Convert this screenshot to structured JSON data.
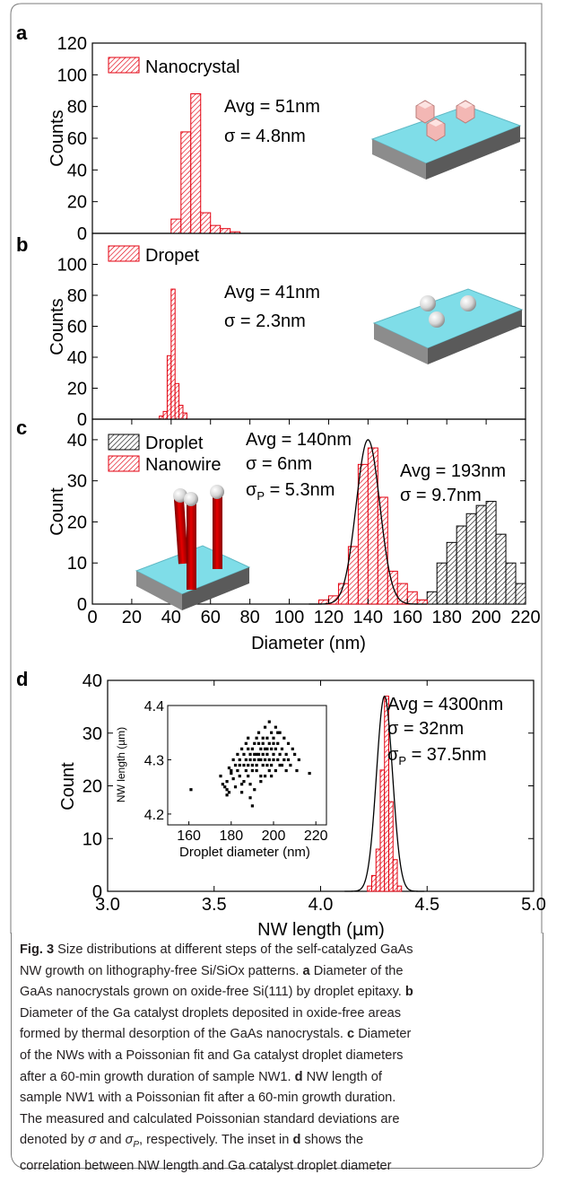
{
  "colors": {
    "red": "#e3000f",
    "black": "#000000",
    "cyan": "#7fdde8",
    "caption_text": "#231f20"
  },
  "chart_data": [
    {
      "panel": "a",
      "type": "bar",
      "ylabel": "Counts",
      "xlim": [
        0,
        220
      ],
      "ylim": [
        0,
        120
      ],
      "yticks": [
        0,
        20,
        40,
        60,
        80,
        100,
        120
      ],
      "bin_width": 5,
      "series": [
        {
          "name": "Nanocrystal",
          "color": "#e3000f",
          "bins": [
            40,
            45,
            50,
            55,
            60,
            65,
            70
          ],
          "values": [
            9,
            64,
            88,
            13,
            5,
            3,
            1
          ]
        }
      ],
      "annotations": [
        "Avg = 51nm",
        "σ = 4.8nm"
      ],
      "inset_icon": "pyramid-crystals-on-substrate-icon"
    },
    {
      "panel": "b",
      "type": "bar",
      "ylabel": "Counts",
      "xlim": [
        0,
        220
      ],
      "ylim": [
        0,
        120
      ],
      "yticks": [
        0,
        20,
        40,
        60,
        80,
        100
      ],
      "bin_width": 2,
      "series": [
        {
          "name": "Dropet",
          "color": "#e3000f",
          "bins": [
            34,
            36,
            38,
            40,
            42,
            44,
            46
          ],
          "values": [
            2,
            5,
            41,
            84,
            23,
            9,
            4
          ]
        }
      ],
      "annotations": [
        "Avg = 41nm",
        "σ = 2.3nm"
      ],
      "inset_icon": "sphere-droplets-on-substrate-icon"
    },
    {
      "panel": "c",
      "type": "bar",
      "ylabel": "Count",
      "xlabel": "Diameter (nm)",
      "xlim": [
        0,
        220
      ],
      "ylim": [
        0,
        45
      ],
      "xticks": [
        0,
        20,
        40,
        60,
        80,
        100,
        120,
        140,
        160,
        180,
        200,
        220
      ],
      "yticks": [
        0,
        10,
        20,
        30,
        40
      ],
      "bin_width": 5,
      "series": [
        {
          "name": "Droplet",
          "color": "#000000",
          "bins": [
            165,
            170,
            175,
            180,
            185,
            190,
            195,
            200,
            205,
            210,
            215
          ],
          "values": [
            1,
            3,
            10,
            15,
            19,
            22,
            24,
            25,
            17,
            10,
            5
          ]
        },
        {
          "name": "Nanowire",
          "color": "#e3000f",
          "bins": [
            115,
            120,
            125,
            130,
            135,
            140,
            145,
            150,
            155,
            160,
            165
          ],
          "values": [
            1,
            2,
            5,
            14,
            34,
            38,
            26,
            8,
            5,
            3,
            1
          ]
        }
      ],
      "fit": {
        "type": "poisson",
        "mean": 140,
        "sigma": 6,
        "peak": 40
      },
      "annotations": [
        "Avg = 140nm",
        "σ = 6nm",
        "σ",
        "P",
        " = 5.3nm",
        "Avg = 193nm",
        "σ = 9.7nm"
      ],
      "inset_icon": "nanowires-on-substrate-icon"
    },
    {
      "panel": "d",
      "type": "bar",
      "ylabel": "Count",
      "xlabel": "NW length (µm)",
      "xlabel_parts": [
        "NW length (",
        "µ",
        "m)"
      ],
      "xlim": [
        3.0,
        5.0
      ],
      "ylim": [
        0,
        40
      ],
      "xticks": [
        3.0,
        3.5,
        4.0,
        4.5,
        5.0
      ],
      "xtick_labels": [
        "3.0",
        "3.5",
        "4.0",
        "4.5",
        "5.0"
      ],
      "yticks": [
        0,
        10,
        20,
        30,
        40
      ],
      "bin_width": 0.02,
      "series": [
        {
          "name": "",
          "color": "#e3000f",
          "bins": [
            4.22,
            4.24,
            4.26,
            4.28,
            4.3,
            4.32,
            4.34,
            4.36
          ],
          "values": [
            1,
            3,
            8,
            23,
            37,
            17,
            6,
            1
          ]
        }
      ],
      "fit": {
        "type": "poisson",
        "mean": 4.3,
        "sigma": 0.0375,
        "peak": 37
      },
      "annotations": [
        "Avg = 4300nm",
        "σ = 32nm",
        "σ",
        "P",
        " = 37.5nm"
      ],
      "inset": {
        "type": "scatter",
        "xlabel": "Droplet diameter (nm)",
        "ylabel": "NW length (µm)",
        "xlim": [
          150,
          225
        ],
        "ylim": [
          4.18,
          4.4
        ],
        "xticks": [
          160,
          180,
          200,
          220
        ],
        "yticks": [
          4.2,
          4.3,
          4.4
        ],
        "ytick_labels": [
          "4.2",
          "4.3",
          "4.4"
        ],
        "points": [
          [
            161,
            4.245
          ],
          [
            175,
            4.27
          ],
          [
            177,
            4.25
          ],
          [
            178,
            4.235
          ],
          [
            178,
            4.26
          ],
          [
            179,
            4.24
          ],
          [
            180,
            4.28
          ],
          [
            181,
            4.3
          ],
          [
            181,
            4.265
          ],
          [
            182,
            4.25
          ],
          [
            182,
            4.29
          ],
          [
            183,
            4.31
          ],
          [
            183,
            4.28
          ],
          [
            184,
            4.27
          ],
          [
            184,
            4.3
          ],
          [
            185,
            4.32
          ],
          [
            185,
            4.255
          ],
          [
            186,
            4.29
          ],
          [
            186,
            4.31
          ],
          [
            187,
            4.33
          ],
          [
            187,
            4.28
          ],
          [
            187,
            4.3
          ],
          [
            188,
            4.27
          ],
          [
            188,
            4.34
          ],
          [
            188,
            4.29
          ],
          [
            189,
            4.31
          ],
          [
            189,
            4.3
          ],
          [
            189,
            4.255
          ],
          [
            190,
            4.32
          ],
          [
            190,
            4.29
          ],
          [
            190,
            4.28
          ],
          [
            190,
            4.215
          ],
          [
            191,
            4.3
          ],
          [
            191,
            4.33
          ],
          [
            191,
            4.31
          ],
          [
            191,
            4.245
          ],
          [
            192,
            4.29
          ],
          [
            192,
            4.34
          ],
          [
            192,
            4.28
          ],
          [
            193,
            4.31
          ],
          [
            193,
            4.35
          ],
          [
            193,
            4.3
          ],
          [
            194,
            4.27
          ],
          [
            194,
            4.32
          ],
          [
            194,
            4.3
          ],
          [
            195,
            4.33
          ],
          [
            195,
            4.31
          ],
          [
            195,
            4.29
          ],
          [
            196,
            4.36
          ],
          [
            196,
            4.3
          ],
          [
            196,
            4.32
          ],
          [
            197,
            4.34
          ],
          [
            197,
            4.29
          ],
          [
            197,
            4.31
          ],
          [
            198,
            4.37
          ],
          [
            198,
            4.33
          ],
          [
            198,
            4.3
          ],
          [
            199,
            4.32
          ],
          [
            199,
            4.35
          ],
          [
            199,
            4.29
          ],
          [
            200,
            4.31
          ],
          [
            200,
            4.34
          ],
          [
            200,
            4.3
          ],
          [
            201,
            4.36
          ],
          [
            201,
            4.32
          ],
          [
            201,
            4.28
          ],
          [
            202,
            4.33
          ],
          [
            202,
            4.3
          ],
          [
            203,
            4.31
          ],
          [
            203,
            4.35
          ],
          [
            204,
            4.32
          ],
          [
            204,
            4.29
          ],
          [
            205,
            4.3
          ],
          [
            205,
            4.34
          ],
          [
            206,
            4.31
          ],
          [
            207,
            4.33
          ],
          [
            207,
            4.3
          ],
          [
            208,
            4.29
          ],
          [
            209,
            4.32
          ],
          [
            210,
            4.31
          ],
          [
            211,
            4.28
          ],
          [
            212,
            4.3
          ],
          [
            217,
            4.275
          ],
          [
            185,
            4.24
          ],
          [
            186,
            4.26
          ],
          [
            189,
            4.23
          ],
          [
            194,
            4.26
          ],
          [
            196,
            4.27
          ],
          [
            198,
            4.28
          ],
          [
            199,
            4.27
          ],
          [
            203,
            4.29
          ],
          [
            206,
            4.28
          ],
          [
            192,
            4.31
          ],
          [
            195,
            4.34
          ],
          [
            188,
            4.32
          ],
          [
            193,
            4.33
          ],
          [
            197,
            4.32
          ],
          [
            200,
            4.33
          ],
          [
            202,
            4.35
          ],
          [
            184,
            4.29
          ],
          [
            180,
            4.275
          ],
          [
            179,
            4.285
          ],
          [
            176,
            4.255
          ],
          [
            178,
            4.245
          ]
        ]
      }
    }
  ],
  "caption": {
    "fig_label": "Fig. 3",
    "lines": [
      [
        {
          "t": "Fig. 3",
          "b": true
        },
        {
          "t": " Size distributions at different steps of the self-catalyzed GaAs"
        }
      ],
      [
        {
          "t": "NW growth on lithography-free Si/SiOx patterns. "
        },
        {
          "t": "a",
          "b": true
        },
        {
          "t": " Diameter of the"
        }
      ],
      [
        {
          "t": "GaAs nanocrystals grown on oxide-free Si(111) by droplet epitaxy. "
        },
        {
          "t": "b",
          "b": true
        }
      ],
      [
        {
          "t": "Diameter of the Ga catalyst droplets deposited in oxide-free areas"
        }
      ],
      [
        {
          "t": "formed by thermal desorption of the GaAs nanocrystals. "
        },
        {
          "t": "c",
          "b": true
        },
        {
          "t": " Diameter"
        }
      ],
      [
        {
          "t": "of the NWs with a Poissonian fit and Ga catalyst droplet diameters"
        }
      ],
      [
        {
          "t": "after a 60-min growth duration of sample NW1. "
        },
        {
          "t": "d",
          "b": true
        },
        {
          "t": " NW length of"
        }
      ],
      [
        {
          "t": "sample NW1 with a Poissonian fit after a 60-min growth duration."
        }
      ],
      [
        {
          "t": "The measured and calculated Poissonian standard deviations are"
        }
      ],
      [
        {
          "t": "denoted by "
        },
        {
          "t": "σ",
          "i": true
        },
        {
          "t": " and "
        },
        {
          "t": "σ",
          "i": true
        },
        {
          "t": "P",
          "sub": true
        },
        {
          "t": ", respectively. The inset in "
        },
        {
          "t": "d",
          "b": true
        },
        {
          "t": " shows the"
        }
      ],
      [
        {
          "t": "correlation between NW length and Ga catalyst droplet diameter"
        }
      ]
    ]
  }
}
